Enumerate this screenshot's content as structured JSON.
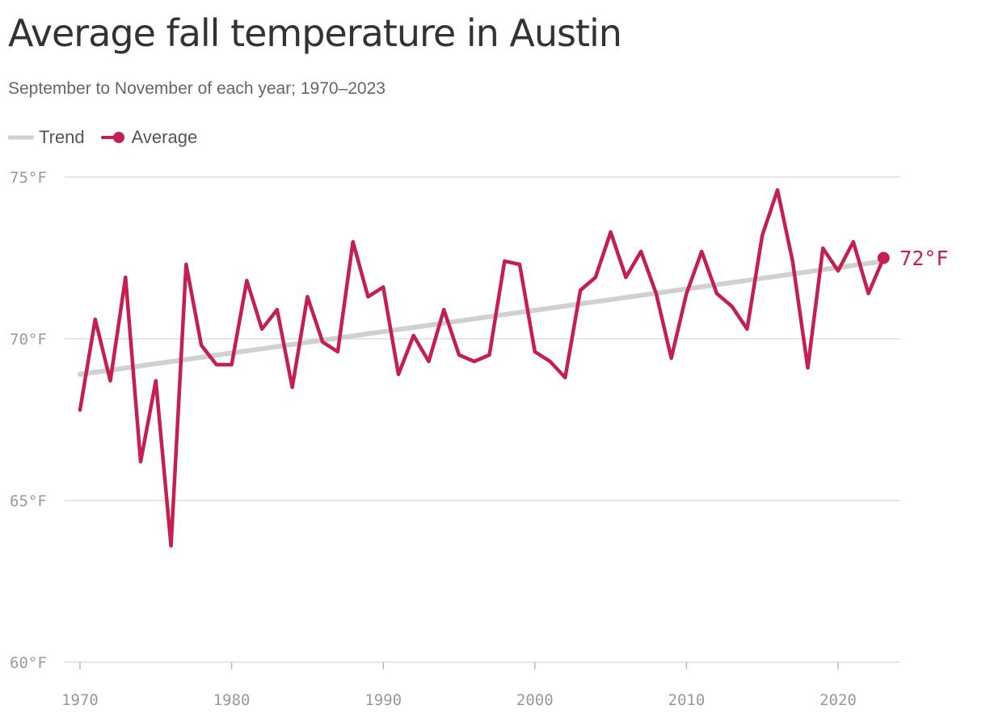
{
  "colors": {
    "average": "#c41f4f",
    "trend": "#d0d0d0",
    "grid": "#dddddd",
    "axis_text": "#999999",
    "title": "#333333"
  },
  "chart_data": {
    "type": "line",
    "title": "Average fall temperature in Austin",
    "subtitle": "September to November of each year; 1970–2023",
    "legend": [
      "Trend",
      "Average"
    ],
    "legend_position": "top-left",
    "grid": true,
    "xlim": [
      1970,
      2024
    ],
    "ylim": [
      60,
      75
    ],
    "x_ticks": [
      1970,
      1980,
      1990,
      2000,
      2010,
      2020
    ],
    "y_ticks": [
      60,
      65,
      70,
      75
    ],
    "y_tick_labels": [
      "60°F",
      "65°F",
      "70°F",
      "75°F"
    ],
    "x": [
      1970,
      1971,
      1972,
      1973,
      1974,
      1975,
      1976,
      1977,
      1978,
      1979,
      1980,
      1981,
      1982,
      1983,
      1984,
      1985,
      1986,
      1987,
      1988,
      1989,
      1990,
      1991,
      1992,
      1993,
      1994,
      1995,
      1996,
      1997,
      1998,
      1999,
      2000,
      2001,
      2002,
      2003,
      2004,
      2005,
      2006,
      2007,
      2008,
      2009,
      2010,
      2011,
      2012,
      2013,
      2014,
      2015,
      2016,
      2017,
      2018,
      2019,
      2020,
      2021,
      2022,
      2023
    ],
    "series": [
      {
        "name": "Average",
        "values": [
          67.8,
          70.6,
          68.7,
          71.9,
          66.2,
          68.7,
          63.6,
          72.3,
          69.8,
          69.2,
          69.2,
          71.8,
          70.3,
          70.9,
          68.5,
          71.3,
          69.9,
          69.6,
          73.0,
          71.3,
          71.6,
          68.9,
          70.1,
          69.3,
          70.9,
          69.5,
          69.3,
          69.5,
          72.4,
          72.3,
          69.6,
          69.3,
          68.8,
          71.5,
          71.9,
          73.3,
          71.9,
          72.7,
          71.4,
          69.4,
          71.4,
          72.7,
          71.4,
          71.0,
          70.3,
          73.2,
          74.6,
          72.4,
          69.1,
          72.8,
          72.1,
          73.0,
          71.4,
          72.5
        ]
      },
      {
        "name": "Trend",
        "values": [
          68.9,
          72.4
        ],
        "x": [
          1970,
          2023
        ]
      }
    ],
    "end_label": "72°F"
  }
}
